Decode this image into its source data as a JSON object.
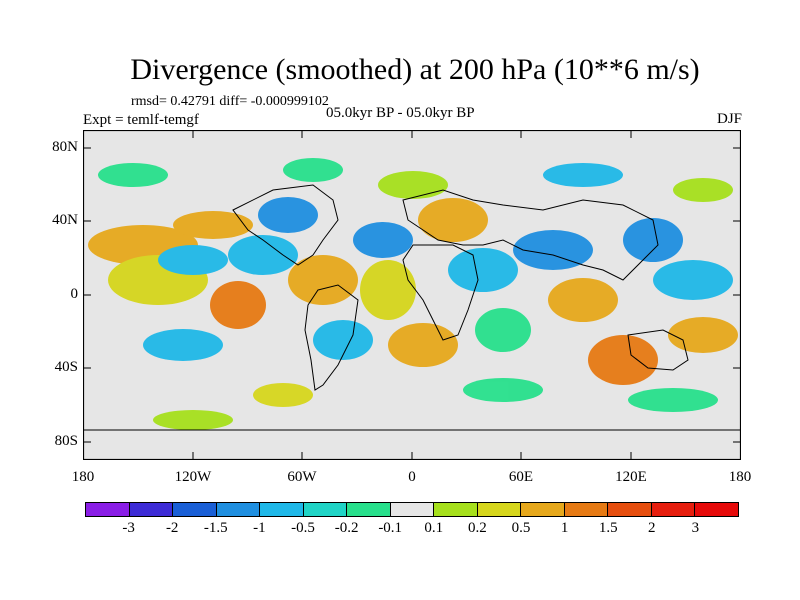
{
  "title": "Divergence (smoothed) at 200 hPa (10**6 m/s)",
  "stats": "rmsd= 0.42791  diff= -0.000999102",
  "experiment": "Expt = temlf-temgf",
  "period": "05.0kyr BP - 05.0kyr BP",
  "season": "DJF",
  "y_axis": [
    "80N",
    "40N",
    "0",
    "40S",
    "80S"
  ],
  "x_axis": [
    "180",
    "120W",
    "60W",
    "0",
    "60E",
    "120E",
    "180"
  ],
  "colorbar": {
    "labels": [
      "-3",
      "-2",
      "-1.5",
      "-1",
      "-0.5",
      "-0.2",
      "-0.1",
      "0.1",
      "0.2",
      "0.5",
      "1",
      "1.5",
      "2",
      "3"
    ],
    "colors": [
      "#8a1ee6",
      "#3d2bd6",
      "#1a5fd6",
      "#1f8fe0",
      "#1fb8e8",
      "#20d4c6",
      "#28e08c",
      "#e6e6e6",
      "#a6e01c",
      "#d6d61c",
      "#e6a81c",
      "#e67a14",
      "#e64e0e",
      "#e61e0e",
      "#e60a0a"
    ]
  },
  "legend_colors": {
    "land_ocean_bg": "#e6e6e6",
    "coast": "#000000"
  }
}
